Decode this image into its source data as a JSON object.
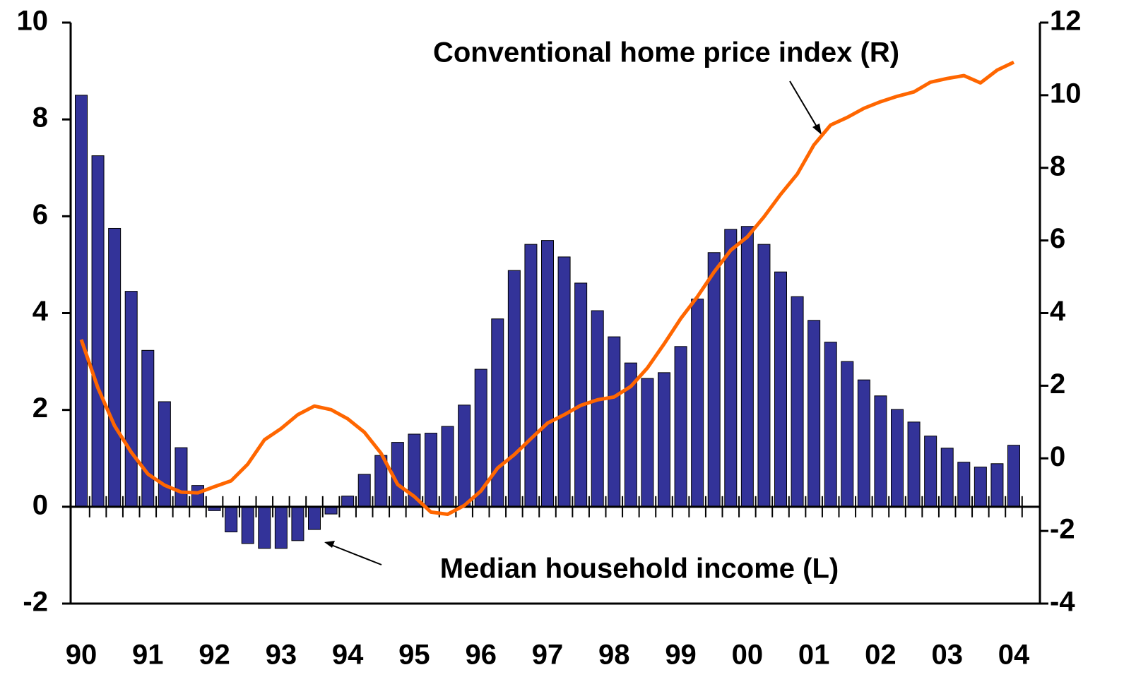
{
  "chart_data": {
    "type": "bar_line",
    "categories": [
      "90",
      null,
      null,
      null,
      "91",
      null,
      null,
      null,
      "92",
      null,
      null,
      null,
      "93",
      null,
      null,
      null,
      "94",
      null,
      null,
      null,
      "95",
      null,
      null,
      null,
      "96",
      null,
      null,
      null,
      "97",
      null,
      null,
      null,
      "98",
      null,
      null,
      null,
      "99",
      null,
      null,
      null,
      "00",
      null,
      null,
      null,
      "01",
      null,
      null,
      null,
      "02",
      null,
      null,
      null,
      "03",
      null,
      null,
      null,
      "04"
    ],
    "series": [
      {
        "name": "Median household income (L)",
        "type": "bar",
        "axis": "y",
        "color": "#333399",
        "values": [
          8.5,
          7.25,
          5.75,
          4.45,
          3.23,
          2.17,
          1.22,
          0.44,
          -0.08,
          -0.52,
          -0.76,
          -0.86,
          -0.86,
          -0.7,
          -0.47,
          -0.15,
          0.22,
          0.67,
          1.06,
          1.33,
          1.5,
          1.52,
          1.66,
          2.1,
          2.84,
          3.88,
          4.88,
          5.42,
          5.5,
          5.16,
          4.62,
          4.05,
          3.51,
          2.97,
          2.65,
          2.77,
          3.31,
          4.29,
          5.25,
          5.73,
          5.79,
          5.42,
          4.85,
          4.34,
          3.85,
          3.4,
          3.0,
          2.62,
          2.29,
          2.01,
          1.75,
          1.46,
          1.21,
          0.92,
          0.82,
          0.89,
          1.27
        ]
      },
      {
        "name": "Conventional home price index (R)",
        "type": "line",
        "axis": "y2",
        "color": "#ff6600",
        "values": [
          3.27,
          1.94,
          0.9,
          0.17,
          -0.43,
          -0.74,
          -0.93,
          -0.95,
          -0.78,
          -0.62,
          -0.16,
          0.51,
          0.82,
          1.2,
          1.44,
          1.34,
          1.09,
          0.72,
          0.14,
          -0.72,
          -1.05,
          -1.48,
          -1.54,
          -1.3,
          -0.9,
          -0.27,
          0.1,
          0.54,
          0.97,
          1.2,
          1.46,
          1.61,
          1.69,
          1.98,
          2.49,
          3.15,
          3.85,
          4.45,
          5.13,
          5.73,
          6.1,
          6.65,
          7.27,
          7.83,
          8.63,
          9.18,
          9.39,
          9.64,
          9.82,
          9.97,
          10.09,
          10.36,
          10.46,
          10.54,
          10.34,
          10.69,
          10.91
        ]
      }
    ],
    "ylim": [
      -2,
      10
    ],
    "yticks": [
      -2,
      0,
      2,
      4,
      6,
      8,
      10
    ],
    "y2lim": [
      -4,
      12
    ],
    "y2ticks": [
      -4,
      -2,
      0,
      2,
      4,
      6,
      8,
      10,
      12
    ]
  }
}
